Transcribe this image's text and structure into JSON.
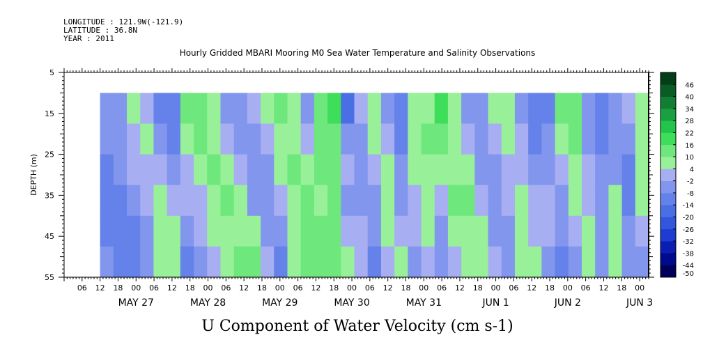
{
  "header": {
    "longitude": "LONGITUDE : 121.9W(-121.9)",
    "latitude": "LATITUDE : 36.8N",
    "year": "YEAR : 2011"
  },
  "chart_data": {
    "type": "heatmap",
    "title": "Hourly Gridded MBARI Mooring M0 Sea Water Temperature and Salinity Observations",
    "xlabel": "U Component of Water Velocity (cm s-1)",
    "ylabel": "DEPTH (m)",
    "y_range": [
      5,
      55
    ],
    "y_axis_inverted": true,
    "y_ticks": [
      5,
      15,
      25,
      35,
      45,
      55
    ],
    "x_range": [
      "2011-05-26 00:00",
      "2011-06-03 03:00"
    ],
    "x_hour_ticks": [
      "06",
      "12",
      "18",
      "00",
      "06",
      "12",
      "18",
      "00",
      "06",
      "12",
      "18",
      "00",
      "06",
      "12",
      "18",
      "00",
      "06",
      "12",
      "18",
      "00",
      "06",
      "12",
      "18",
      "00",
      "06",
      "12",
      "18",
      "00",
      "06",
      "12",
      "18",
      "00"
    ],
    "x_date_labels": [
      "MAY 27",
      "MAY 28",
      "MAY 29",
      "MAY 30",
      "MAY 31",
      "JUN  1",
      "JUN  2",
      "JUN  3"
    ],
    "data_depth_range": [
      10,
      55
    ],
    "data_time_start": "2011-05-26 12:00",
    "colorbar": {
      "levels": [
        -50,
        -44,
        -38,
        -32,
        -26,
        -20,
        -14,
        -8,
        -2,
        4,
        10,
        16,
        22,
        28,
        34,
        40,
        46
      ],
      "tick_labels": [
        "46",
        "40",
        "34",
        "28",
        "22",
        "16",
        "10",
        "4",
        "-2",
        "-8",
        "-14",
        "-20",
        "-26",
        "-32",
        "-38",
        "-44",
        "-50"
      ],
      "colors": [
        "#00005a",
        "#000a8c",
        "#0a1eb4",
        "#1e3cd2",
        "#3256dc",
        "#4a6ee4",
        "#6482ea",
        "#8296ee",
        "#a8aef2",
        "#98f098",
        "#6ee87c",
        "#3ede5a",
        "#22c44a",
        "#1aa040",
        "#127e34",
        "#0a5c26",
        "#043e18"
      ]
    },
    "heatmap_values": [
      [
        -8,
        -8,
        -9,
        -10,
        -9,
        -7
      ],
      [
        -5,
        -6,
        -8,
        -10,
        -12,
        -13
      ],
      [
        6,
        3,
        -2,
        -6,
        -10,
        -12
      ],
      [
        2,
        5,
        3,
        0,
        -3,
        -5
      ],
      [
        -12,
        -6,
        0,
        4,
        6,
        4
      ],
      [
        -14,
        -10,
        -4,
        2,
        6,
        8
      ],
      [
        10,
        6,
        2,
        -2,
        -6,
        -10
      ],
      [
        14,
        10,
        6,
        2,
        -2,
        -6
      ],
      [
        4,
        8,
        10,
        8,
        6,
        2
      ],
      [
        -4,
        0,
        6,
        10,
        8,
        4
      ],
      [
        -8,
        -4,
        0,
        4,
        8,
        10
      ],
      [
        -2,
        -6,
        -8,
        -4,
        4,
        10
      ],
      [
        6,
        2,
        -4,
        -8,
        -6,
        -2
      ],
      [
        10,
        8,
        4,
        -2,
        -8,
        -10
      ],
      [
        4,
        8,
        10,
        8,
        6,
        8
      ],
      [
        -4,
        -2,
        6,
        10,
        10,
        12
      ],
      [
        14,
        12,
        10,
        8,
        10,
        12
      ],
      [
        18,
        14,
        12,
        10,
        12,
        10
      ],
      [
        -16,
        -6,
        -2,
        -4,
        2,
        4
      ],
      [
        2,
        -4,
        -8,
        -6,
        -2,
        2
      ],
      [
        8,
        6,
        0,
        -4,
        -8,
        -10
      ],
      [
        -6,
        -2,
        4,
        8,
        6,
        2
      ],
      [
        -10,
        -10,
        -8,
        -4,
        2,
        6
      ],
      [
        4,
        6,
        4,
        2,
        -2,
        -8
      ],
      [
        8,
        10,
        8,
        6,
        4,
        -2
      ],
      [
        18,
        14,
        8,
        2,
        -4,
        -8
      ],
      [
        8,
        6,
        8,
        10,
        6,
        2
      ],
      [
        -6,
        -2,
        4,
        10,
        8,
        6
      ],
      [
        -4,
        -8,
        -8,
        -2,
        4,
        8
      ],
      [
        4,
        -2,
        -6,
        -8,
        -4,
        2
      ],
      [
        8,
        6,
        2,
        -2,
        -6,
        -8
      ],
      [
        -6,
        -2,
        2,
        6,
        8,
        6
      ],
      [
        -12,
        -10,
        -6,
        -2,
        2,
        6
      ],
      [
        -10,
        -8,
        -4,
        0,
        -2,
        -8
      ],
      [
        10,
        6,
        2,
        -4,
        -8,
        -10
      ],
      [
        12,
        10,
        6,
        4,
        -2,
        -6
      ],
      [
        -8,
        -4,
        -2,
        2,
        6,
        8
      ],
      [
        -12,
        -10,
        -8,
        -6,
        -8,
        -6
      ],
      [
        -6,
        -8,
        -4,
        4,
        8,
        6
      ],
      [
        2,
        -6,
        -10,
        -12,
        -8,
        -4
      ],
      [
        6,
        4,
        8,
        4,
        -2,
        -6
      ]
    ]
  }
}
